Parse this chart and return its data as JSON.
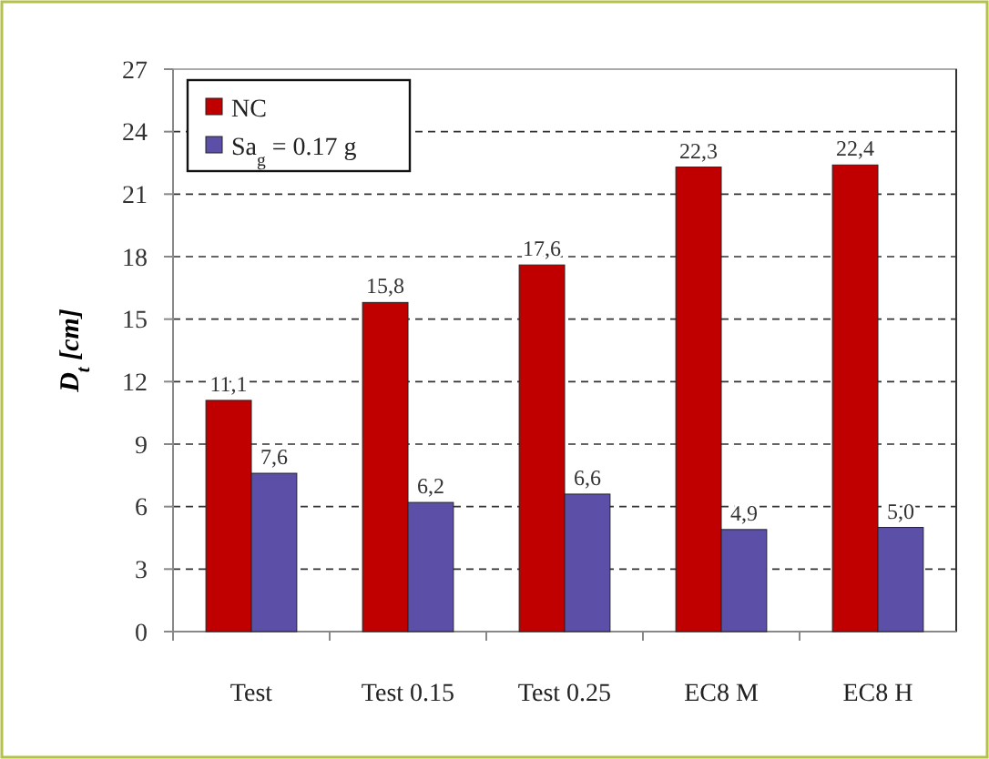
{
  "chart_data": {
    "type": "bar",
    "ylabel": "D$_{t}$ [cm]",
    "categories": [
      "Test",
      "Test 0.15",
      "Test 0.25",
      "EC8 M",
      "EC8 H"
    ],
    "series": [
      {
        "name": "NC",
        "color": "#c00000",
        "values": [
          11.1,
          15.8,
          17.6,
          22.3,
          22.4
        ],
        "value_labels": [
          "11,1",
          "15,8",
          "17,6",
          "22,3",
          "22,4"
        ]
      },
      {
        "name": "Sa$_{g}$ = 0.17 g",
        "color": "#5b4fa8",
        "values": [
          7.6,
          6.2,
          6.6,
          4.9,
          5.0
        ],
        "value_labels": [
          "7,6",
          "6,2",
          "6,6",
          "4,9",
          "5,0"
        ]
      }
    ],
    "ylim": [
      0,
      27
    ],
    "yticks": [
      0,
      3,
      6,
      9,
      12,
      15,
      18,
      21,
      24,
      27
    ],
    "grid": "y",
    "legend": "top left"
  }
}
